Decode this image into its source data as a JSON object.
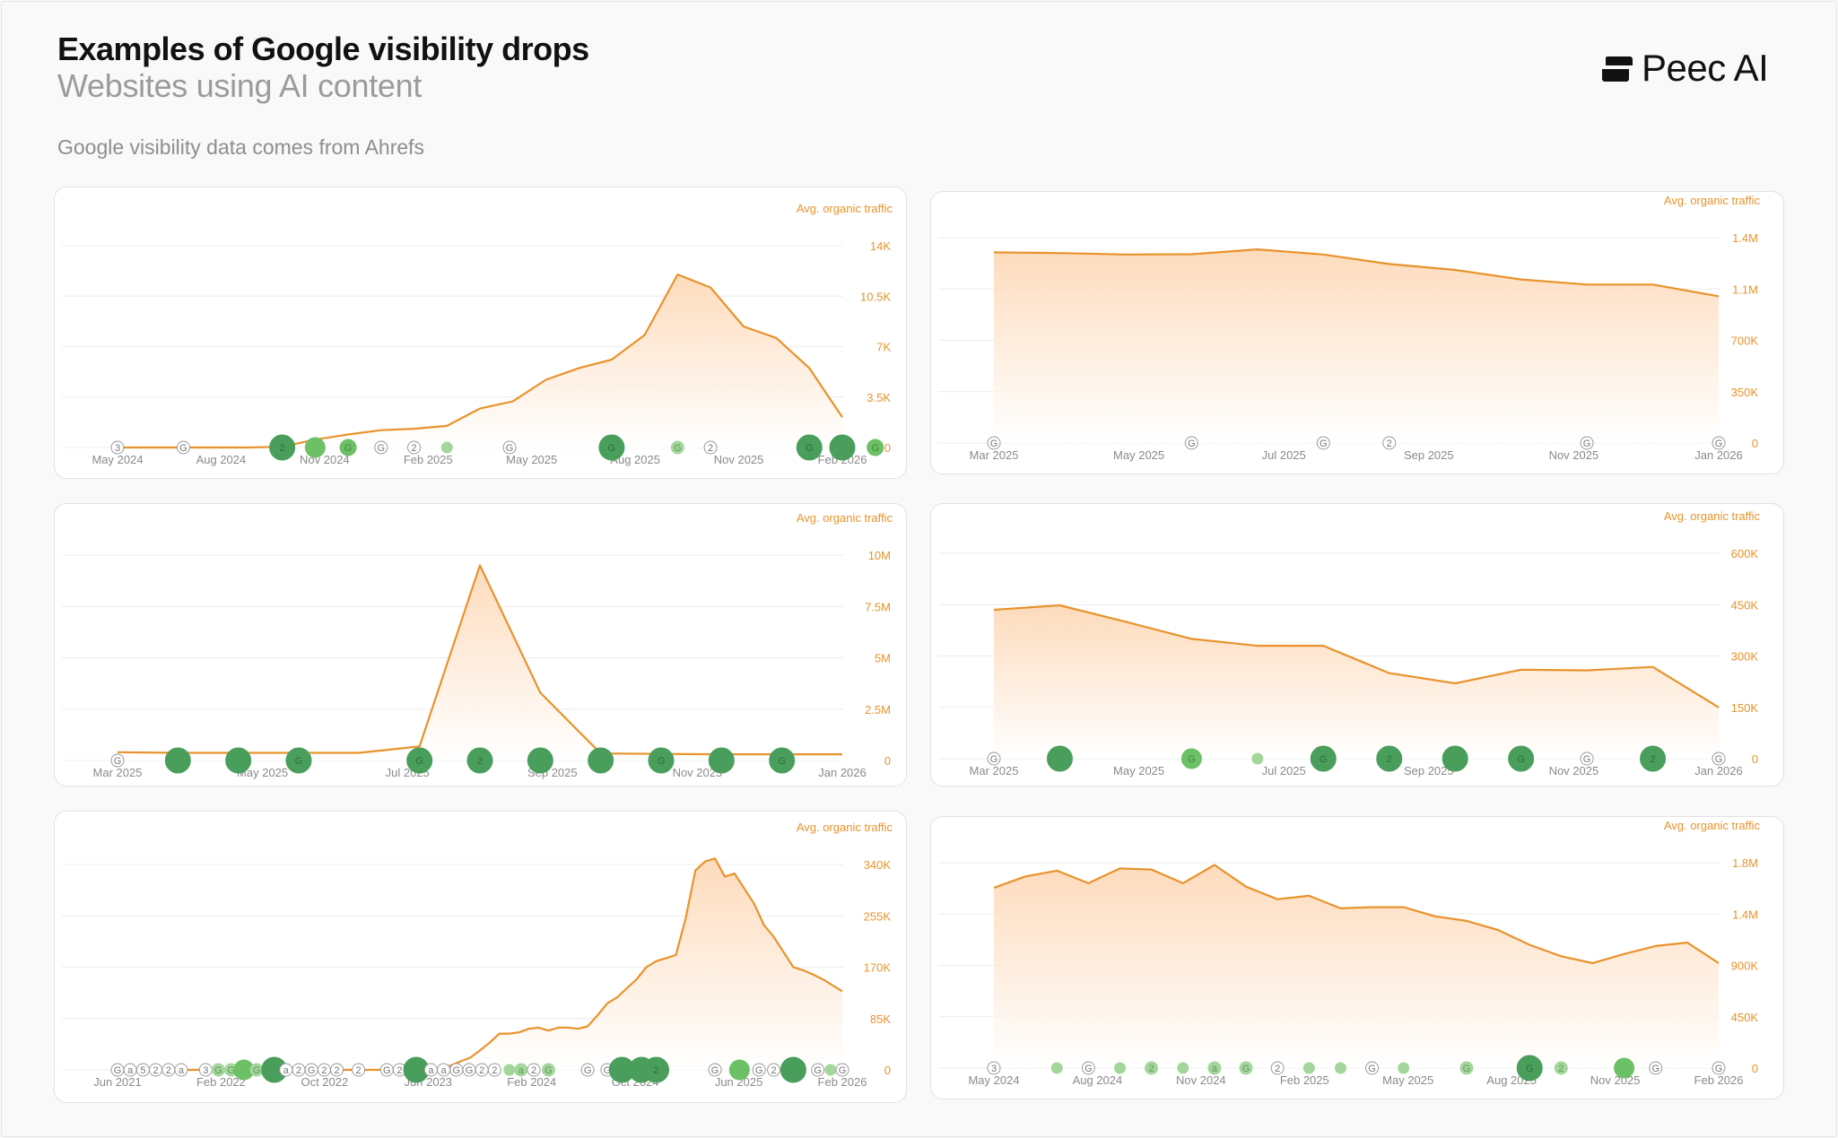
{
  "header": {
    "title": "Examples of Google visibility drops",
    "subtitle": "Websites using AI content",
    "source_note": "Google visibility data comes from Ahrefs",
    "brand": "Peec AI"
  },
  "colors": {
    "line": "#e8932c",
    "fill_top": "#fdd9b8",
    "marker_dark": "#4a9e5c",
    "marker_mid": "#6cc065",
    "marker_light": "#a3d69b",
    "grid": "#ececec"
  },
  "chart_data": [
    {
      "type": "area",
      "ylabel": "Avg. organic traffic",
      "ylim": [
        0,
        14000
      ],
      "yticks": [
        "0",
        "3.5K",
        "7K",
        "10.5K",
        "14K"
      ],
      "xticks": [
        "May 2024",
        "Aug 2024",
        "Nov 2024",
        "Feb 2025",
        "May 2025",
        "Aug 2025",
        "Nov 2025",
        "Feb 2026"
      ],
      "series": [
        {
          "values": [
            0,
            0,
            0,
            0,
            0,
            50,
            550,
            900,
            1200,
            1300,
            1500,
            2700,
            3200,
            4700,
            5500,
            6100,
            7800,
            12000,
            11100,
            8400,
            7600,
            5500,
            2100
          ]
        }
      ],
      "markers": [
        {
          "x": 0.0,
          "label": "3",
          "kind": "outline"
        },
        {
          "x": 2.0,
          "label": "G",
          "kind": "outline"
        },
        {
          "x": 5.0,
          "label": "2",
          "kind": "dark"
        },
        {
          "x": 6.0,
          "label": "",
          "kind": "mid"
        },
        {
          "x": 7.0,
          "label": "G",
          "kind": "midsmall"
        },
        {
          "x": 8.0,
          "label": "G",
          "kind": "outline"
        },
        {
          "x": 9.0,
          "label": "2",
          "kind": "outline"
        },
        {
          "x": 10.0,
          "label": "",
          "kind": "tiny"
        },
        {
          "x": 11.9,
          "label": "G",
          "kind": "outline"
        },
        {
          "x": 15.0,
          "label": "G",
          "kind": "dark"
        },
        {
          "x": 17.0,
          "label": "G",
          "kind": "lightsmall"
        },
        {
          "x": 18.0,
          "label": "2",
          "kind": "outline"
        },
        {
          "x": 21.0,
          "label": "G",
          "kind": "dark"
        },
        {
          "x": 22.0,
          "label": "",
          "kind": "dark"
        },
        {
          "x": 23.0,
          "label": "G",
          "kind": "midsmall"
        }
      ]
    },
    {
      "type": "area",
      "ylabel": "Avg. organic traffic",
      "ylim": [
        0,
        1400000
      ],
      "yticks": [
        "0",
        "350K",
        "700K",
        "1.1M",
        "1.4M"
      ],
      "xticks": [
        "Mar 2025",
        "May 2025",
        "Jul 2025",
        "Sep 2025",
        "Nov 2025",
        "Jan 2026"
      ],
      "series": [
        {
          "values": [
            1300000,
            1295000,
            1285000,
            1287000,
            1320000,
            1285000,
            1220000,
            1180000,
            1115000,
            1080000,
            1080000,
            1000000
          ]
        }
      ],
      "markers": [
        {
          "x": 0.0,
          "label": "G",
          "kind": "outline"
        },
        {
          "x": 3.0,
          "label": "G",
          "kind": "outline"
        },
        {
          "x": 5.0,
          "label": "G",
          "kind": "outline"
        },
        {
          "x": 6.0,
          "label": "2",
          "kind": "outline"
        },
        {
          "x": 9.0,
          "label": "G",
          "kind": "outline"
        },
        {
          "x": 11.0,
          "label": "G",
          "kind": "outline"
        }
      ]
    },
    {
      "type": "area",
      "ylabel": "Avg. organic traffic",
      "ylim": [
        0,
        10000000
      ],
      "yticks": [
        "0",
        "2.5M",
        "5M",
        "7.5M",
        "10M"
      ],
      "xticks": [
        "Mar 2025",
        "May 2025",
        "Jul 2025",
        "Sep 2025",
        "Nov 2025",
        "Jan 2026"
      ],
      "series": [
        {
          "values": [
            400000,
            370000,
            370000,
            370000,
            370000,
            680000,
            9500000,
            3300000,
            340000,
            320000,
            300000,
            300000,
            300000
          ]
        }
      ],
      "markers": [
        {
          "x": 0.0,
          "label": "G",
          "kind": "outline"
        },
        {
          "x": 1.0,
          "label": "",
          "kind": "dark"
        },
        {
          "x": 2.0,
          "label": "",
          "kind": "dark"
        },
        {
          "x": 3.0,
          "label": "G",
          "kind": "dark"
        },
        {
          "x": 5.0,
          "label": "G",
          "kind": "dark"
        },
        {
          "x": 6.0,
          "label": "2",
          "kind": "dark"
        },
        {
          "x": 7.0,
          "label": "",
          "kind": "dark"
        },
        {
          "x": 8.0,
          "label": "",
          "kind": "dark"
        },
        {
          "x": 9.0,
          "label": "G",
          "kind": "dark"
        },
        {
          "x": 10.0,
          "label": "",
          "kind": "dark"
        },
        {
          "x": 11.0,
          "label": "G",
          "kind": "dark"
        }
      ]
    },
    {
      "type": "area",
      "ylabel": "Avg. organic traffic",
      "ylim": [
        0,
        600000
      ],
      "yticks": [
        "0",
        "150K",
        "300K",
        "450K",
        "600K"
      ],
      "xticks": [
        "Mar 2025",
        "May 2025",
        "Jul 2025",
        "Sep 2025",
        "Nov 2025",
        "Jan 2026"
      ],
      "series": [
        {
          "values": [
            435000,
            448000,
            400000,
            350000,
            330000,
            330000,
            250000,
            220000,
            260000,
            258000,
            268000,
            150000
          ]
        }
      ],
      "markers": [
        {
          "x": 0.0,
          "label": "G",
          "kind": "outline"
        },
        {
          "x": 1.0,
          "label": "",
          "kind": "dark"
        },
        {
          "x": 3.0,
          "label": "G",
          "kind": "mid"
        },
        {
          "x": 4.0,
          "label": "",
          "kind": "tiny"
        },
        {
          "x": 5.0,
          "label": "G",
          "kind": "dark"
        },
        {
          "x": 6.0,
          "label": "2",
          "kind": "dark"
        },
        {
          "x": 7.0,
          "label": "",
          "kind": "dark"
        },
        {
          "x": 8.0,
          "label": "G",
          "kind": "dark"
        },
        {
          "x": 9.0,
          "label": "G",
          "kind": "outline"
        },
        {
          "x": 10.0,
          "label": "2",
          "kind": "dark"
        },
        {
          "x": 11.0,
          "label": "G",
          "kind": "outline"
        }
      ]
    },
    {
      "type": "area",
      "ylabel": "Avg. organic traffic",
      "ylim": [
        0,
        340000
      ],
      "yticks": [
        "0",
        "85K",
        "170K",
        "255K",
        "340K"
      ],
      "xticks": [
        "Jun 2021",
        "Feb 2022",
        "Oct 2022",
        "Jun 2023",
        "Feb 2024",
        "Oct 2024",
        "Jun 2025",
        "Feb 2026"
      ],
      "series": [
        {
          "values": [
            0,
            0,
            0,
            0,
            0,
            0,
            0,
            0,
            0,
            0,
            0,
            0,
            0,
            0,
            0,
            0,
            0,
            0,
            0,
            0,
            0,
            0,
            0,
            0,
            0,
            0,
            0,
            0,
            0,
            0,
            0,
            0,
            1500,
            3500,
            7000,
            14000,
            20000,
            32000,
            45000,
            60000,
            60000,
            62000,
            68000,
            70000,
            65000,
            70000,
            70000,
            68000,
            72000,
            90000,
            110000,
            120000,
            135000,
            150000,
            170000,
            180000,
            185000,
            190000,
            250000,
            330000,
            345000,
            350000,
            320000,
            325000,
            300000,
            275000,
            240000,
            220000,
            195000,
            170000,
            165000,
            158000,
            150000,
            140000,
            130000
          ]
        }
      ],
      "markers": [
        {
          "x": 0,
          "label": "G",
          "kind": "outline"
        },
        {
          "x": 1.3,
          "label": "a",
          "kind": "outline"
        },
        {
          "x": 2.6,
          "label": "5",
          "kind": "outline"
        },
        {
          "x": 3.9,
          "label": "2",
          "kind": "outline"
        },
        {
          "x": 5.2,
          "label": "2",
          "kind": "outline"
        },
        {
          "x": 6.5,
          "label": "a",
          "kind": "outline"
        },
        {
          "x": 9.0,
          "label": "3",
          "kind": "outline"
        },
        {
          "x": 10.3,
          "label": "G",
          "kind": "lightsmall"
        },
        {
          "x": 11.6,
          "label": "G",
          "kind": "lightsmall"
        },
        {
          "x": 12.9,
          "label": "",
          "kind": "mid"
        },
        {
          "x": 14.2,
          "label": "G",
          "kind": "lightsmall"
        },
        {
          "x": 16.0,
          "label": "",
          "kind": "dark"
        },
        {
          "x": 17.2,
          "label": "a",
          "kind": "outline"
        },
        {
          "x": 18.5,
          "label": "2",
          "kind": "outline"
        },
        {
          "x": 19.8,
          "label": "G",
          "kind": "outline"
        },
        {
          "x": 21.1,
          "label": "2",
          "kind": "outline"
        },
        {
          "x": 22.4,
          "label": "2",
          "kind": "outline"
        },
        {
          "x": 24.6,
          "label": "2",
          "kind": "outline"
        },
        {
          "x": 27.5,
          "label": "G",
          "kind": "outline"
        },
        {
          "x": 28.8,
          "label": "2",
          "kind": "outline"
        },
        {
          "x": 30.5,
          "label": "",
          "kind": "dark"
        },
        {
          "x": 32.0,
          "label": "a",
          "kind": "outline"
        },
        {
          "x": 33.3,
          "label": "a",
          "kind": "outline"
        },
        {
          "x": 34.6,
          "label": "G",
          "kind": "outline"
        },
        {
          "x": 35.9,
          "label": "G",
          "kind": "outline"
        },
        {
          "x": 37.2,
          "label": "2",
          "kind": "outline"
        },
        {
          "x": 38.5,
          "label": "2",
          "kind": "outline"
        },
        {
          "x": 40.0,
          "label": "",
          "kind": "tinylight"
        },
        {
          "x": 41.2,
          "label": "a",
          "kind": "lightsmall"
        },
        {
          "x": 42.5,
          "label": "2",
          "kind": "outline"
        },
        {
          "x": 44.0,
          "label": "G",
          "kind": "lightsmall"
        },
        {
          "x": 48.0,
          "label": "G",
          "kind": "outline"
        },
        {
          "x": 50.0,
          "label": "G",
          "kind": "outline"
        },
        {
          "x": 51.5,
          "label": "",
          "kind": "dark"
        },
        {
          "x": 53.5,
          "label": "",
          "kind": "dark"
        },
        {
          "x": 55.0,
          "label": "2",
          "kind": "dark"
        },
        {
          "x": 61.0,
          "label": "G",
          "kind": "outline"
        },
        {
          "x": 63.5,
          "label": "",
          "kind": "mid"
        },
        {
          "x": 65.5,
          "label": "G",
          "kind": "outline"
        },
        {
          "x": 67.0,
          "label": "2",
          "kind": "outline"
        },
        {
          "x": 69.0,
          "label": "",
          "kind": "dark"
        },
        {
          "x": 71.5,
          "label": "G",
          "kind": "outline"
        },
        {
          "x": 72.8,
          "label": "",
          "kind": "tinylight"
        },
        {
          "x": 74.0,
          "label": "G",
          "kind": "outline"
        }
      ]
    },
    {
      "type": "area",
      "ylabel": "Avg. organic traffic",
      "ylim": [
        0,
        1800000
      ],
      "yticks": [
        "0",
        "450K",
        "900K",
        "1.4M",
        "1.8M"
      ],
      "xticks": [
        "May 2024",
        "Aug 2024",
        "Nov 2024",
        "Feb 2025",
        "May 2025",
        "Aug 2025",
        "Nov 2025",
        "Feb 2026"
      ],
      "series": [
        {
          "values": [
            1580000,
            1680000,
            1730000,
            1620000,
            1750000,
            1740000,
            1620000,
            1780000,
            1590000,
            1480000,
            1510000,
            1400000,
            1410000,
            1410000,
            1330000,
            1290000,
            1210000,
            1080000,
            980000,
            920000,
            1000000,
            1070000,
            1100000,
            920000
          ]
        }
      ],
      "markers": [
        {
          "x": 0.0,
          "label": "3",
          "kind": "outline"
        },
        {
          "x": 2.0,
          "label": "",
          "kind": "tinylight"
        },
        {
          "x": 3.0,
          "label": "G",
          "kind": "outline"
        },
        {
          "x": 4.0,
          "label": "",
          "kind": "tinylight"
        },
        {
          "x": 5.0,
          "label": "2",
          "kind": "lightsmall"
        },
        {
          "x": 6.0,
          "label": "",
          "kind": "tinylight"
        },
        {
          "x": 7.0,
          "label": "a",
          "kind": "lightsmall"
        },
        {
          "x": 8.0,
          "label": "G",
          "kind": "lightsmall"
        },
        {
          "x": 9.0,
          "label": "2",
          "kind": "outline"
        },
        {
          "x": 10.0,
          "label": "",
          "kind": "tinylight"
        },
        {
          "x": 11.0,
          "label": "",
          "kind": "tinylight"
        },
        {
          "x": 12.0,
          "label": "G",
          "kind": "outline"
        },
        {
          "x": 13.0,
          "label": "",
          "kind": "tinylight"
        },
        {
          "x": 15.0,
          "label": "G",
          "kind": "lightsmall"
        },
        {
          "x": 17.0,
          "label": "G",
          "kind": "dark"
        },
        {
          "x": 18.0,
          "label": "2",
          "kind": "lightsmall"
        },
        {
          "x": 20.0,
          "label": "",
          "kind": "mid"
        },
        {
          "x": 21.0,
          "label": "G",
          "kind": "outline"
        },
        {
          "x": 23.0,
          "label": "G",
          "kind": "outline"
        }
      ]
    }
  ]
}
